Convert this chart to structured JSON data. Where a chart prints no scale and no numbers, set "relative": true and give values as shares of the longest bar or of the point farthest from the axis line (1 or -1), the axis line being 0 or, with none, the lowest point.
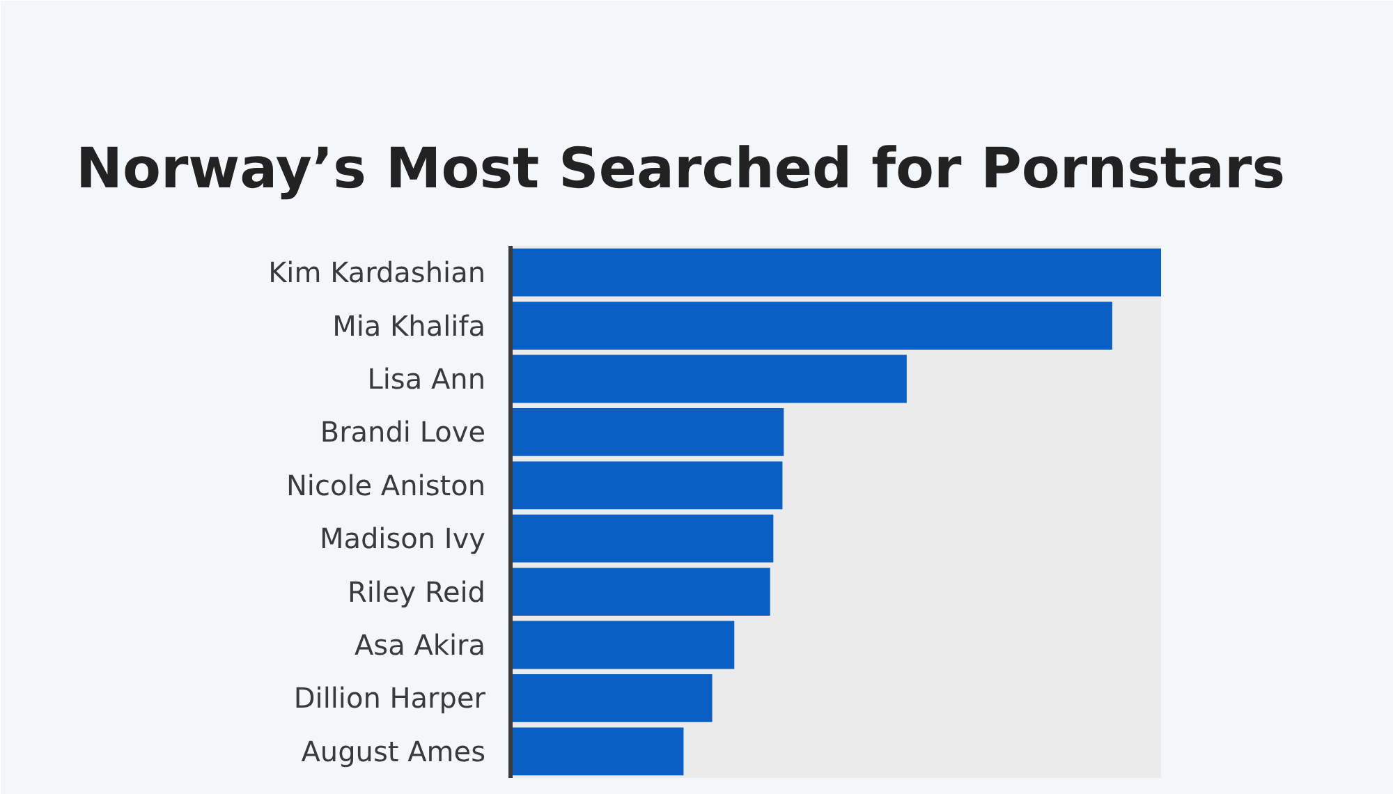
{
  "chart_data": {
    "type": "bar",
    "orientation": "horizontal",
    "relative": true,
    "title": "Norway’s Most Searched for Pornstars",
    "categories": [
      "Kim Kardashian",
      "Mia Khalifa",
      "Lisa Ann",
      "Brandi Love",
      "Nicole Aniston",
      "Madison Ivy",
      "Riley Reid",
      "Asa Akira",
      "Dillion Harper",
      "August Ames"
    ],
    "values": [
      1,
      0.925,
      0.609,
      0.42,
      0.418,
      0.404,
      0.399,
      0.344,
      0.31,
      0.266
    ],
    "color": "#0a5fc4"
  }
}
